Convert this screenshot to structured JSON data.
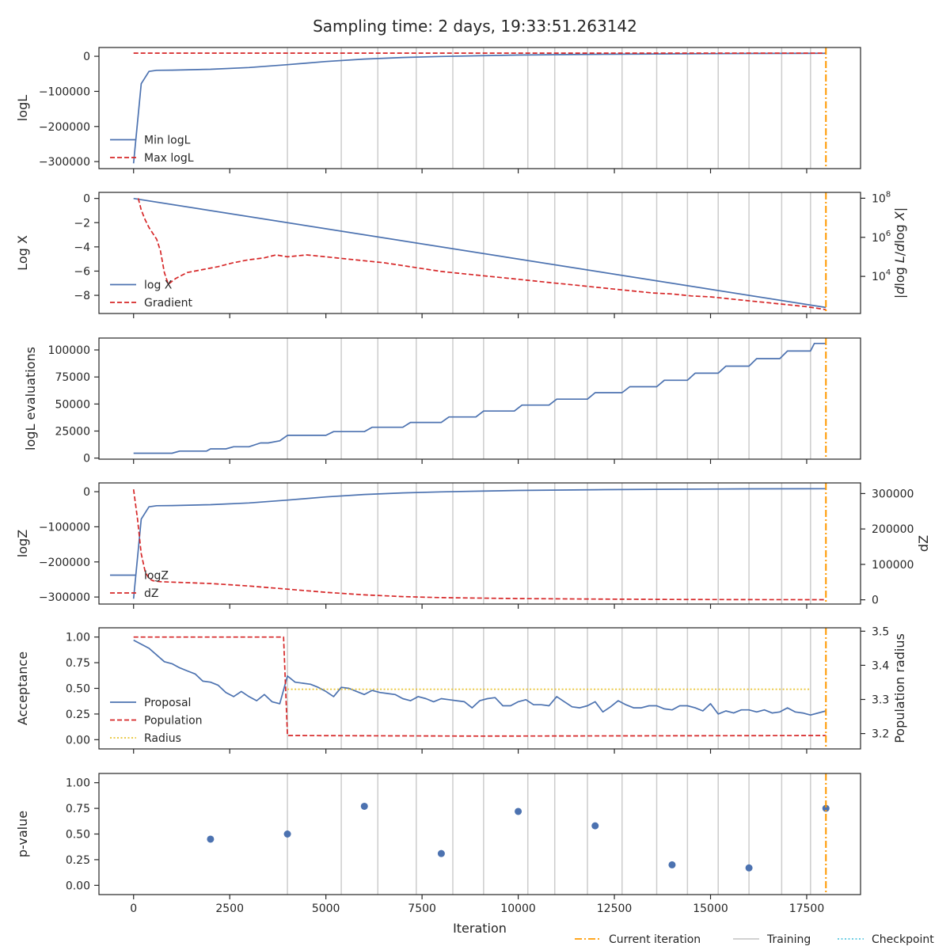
{
  "chart_data": {
    "title": "Sampling time: 2 days, 19:33:51.263142",
    "xlabel": "Iteration",
    "xlim": [
      -900,
      18900
    ],
    "xticks": [
      0,
      2500,
      5000,
      7500,
      10000,
      12500,
      15000,
      17500
    ],
    "xtick_labels": [
      "0",
      "2500",
      "5000",
      "7500",
      "10000",
      "12500",
      "15000",
      "17500"
    ],
    "training_iterations": [
      4000,
      5400,
      6350,
      7350,
      8300,
      9100,
      10250,
      10950,
      11800,
      12700,
      13600,
      14400,
      15200,
      16000,
      16850,
      17600
    ],
    "current_iteration": 18000,
    "figure_legend": [
      {
        "label": "Current iteration",
        "color": "#ff9900",
        "style": "dashdot"
      },
      {
        "label": "Training",
        "color": "#cccccc",
        "style": "solid"
      },
      {
        "label": "Checkpoint",
        "color": "#5bc8e0",
        "style": "dotted"
      }
    ],
    "panels": [
      {
        "type": "line",
        "ylabel": "logL",
        "ylim": [
          -320000,
          25000
        ],
        "yticks": [
          0,
          -100000,
          -200000,
          -300000
        ],
        "ytick_labels": [
          "0",
          "−100000",
          "−200000",
          "−300000"
        ],
        "legend_position": "lower-left",
        "series": [
          {
            "name": "Min logL",
            "color": "#4c72b0",
            "style": "solid",
            "x": [
              0,
              200,
              400,
              600,
              1000,
              2000,
              3000,
              4000,
              5000,
              6000,
              7000,
              8000,
              9000,
              10000,
              12000,
              14000,
              16000,
              18000
            ],
            "y": [
              -305000,
              -78000,
              -43000,
              -40000,
              -39500,
              -37000,
              -32000,
              -24000,
              -15000,
              -8000,
              -3500,
              -500,
              1500,
              3500,
              5500,
              7000,
              8000,
              8500
            ]
          },
          {
            "name": "Max logL",
            "color": "#d62728",
            "style": "dashed",
            "x": [
              0,
              18000
            ],
            "y": [
              9000,
              9000
            ]
          }
        ]
      },
      {
        "type": "line",
        "ylabel": "Log X",
        "ylim": [
          -9.5,
          0.5
        ],
        "yticks": [
          0,
          -2,
          -4,
          -6,
          -8
        ],
        "ytick_labels": [
          "0",
          "−2",
          "−4",
          "−6",
          "−8"
        ],
        "y2label": "|d log L/d log X|",
        "y2scale": "log",
        "y2lim_log10": [
          2.1,
          8.3
        ],
        "y2ticks_log10": [
          4,
          6,
          8
        ],
        "y2tick_labels": [
          "10^4",
          "10^6",
          "10^8"
        ],
        "legend_position": "lower-left",
        "series": [
          {
            "name": "log X",
            "color": "#4c72b0",
            "style": "solid",
            "axis": "left",
            "x": [
              0,
              18000
            ],
            "y": [
              0,
              -9.0
            ]
          },
          {
            "name": "Gradient",
            "color": "#d62728",
            "style": "dashed",
            "axis": "right",
            "x": [
              120,
              200,
              300,
              400,
              500,
              600,
              700,
              800,
              900,
              1100,
              1400,
              1800,
              2200,
              2600,
              3000,
              3400,
              3700,
              4000,
              4500,
              5000,
              5500,
              6000,
              6500,
              7000,
              7500,
              8000,
              8500,
              9000,
              9500,
              10000,
              10500,
              11000,
              11500,
              12000,
              12500,
              13000,
              13500,
              14000,
              14500,
              15000,
              15500,
              16000,
              16500,
              17000,
              17500,
              18000
            ],
            "y": [
              8.0,
              7.4,
              6.9,
              6.5,
              6.2,
              5.9,
              5.3,
              4.2,
              3.6,
              3.9,
              4.2,
              4.35,
              4.5,
              4.7,
              4.85,
              4.95,
              5.1,
              5.0,
              5.1,
              5.0,
              4.9,
              4.8,
              4.7,
              4.55,
              4.4,
              4.25,
              4.15,
              4.05,
              3.95,
              3.85,
              3.75,
              3.65,
              3.55,
              3.45,
              3.35,
              3.25,
              3.15,
              3.1,
              3.0,
              2.95,
              2.85,
              2.75,
              2.65,
              2.55,
              2.45,
              2.3
            ]
          }
        ]
      },
      {
        "type": "line",
        "ylabel": "logL evaluations",
        "ylim": [
          -1000,
          111000
        ],
        "yticks": [
          0,
          25000,
          50000,
          75000,
          100000
        ],
        "ytick_labels": [
          "0",
          "25000",
          "50000",
          "75000",
          "100000"
        ],
        "series": [
          {
            "name": "",
            "color": "#4c72b0",
            "style": "solid",
            "x": [
              0,
              1000,
              1200,
              1900,
              2000,
              2400,
              2600,
              3000,
              3300,
              3500,
              3800,
              4000,
              5000,
              5200,
              6000,
              6200,
              7000,
              7200,
              8000,
              8200,
              8900,
              9100,
              9900,
              10100,
              10800,
              11000,
              11800,
              12000,
              12700,
              12900,
              13600,
              13800,
              14400,
              14600,
              15200,
              15400,
              16000,
              16200,
              16800,
              17000,
              17600,
              17700,
              18000
            ],
            "y": [
              4500,
              4500,
              6500,
              6500,
              8500,
              8500,
              10500,
              10500,
              14000,
              14000,
              16000,
              21000,
              21000,
              24500,
              24500,
              28500,
              28500,
              33000,
              33000,
              38000,
              38000,
              43500,
              43500,
              49000,
              49000,
              54500,
              54500,
              60500,
              60500,
              66000,
              66000,
              72000,
              72000,
              78500,
              78500,
              85000,
              85000,
              92000,
              92000,
              99000,
              99000,
              106000,
              106000
            ]
          }
        ]
      },
      {
        "type": "line",
        "ylabel": "logZ",
        "ylim": [
          -320000,
          25000
        ],
        "yticks": [
          0,
          -100000,
          -200000,
          -300000
        ],
        "ytick_labels": [
          "0",
          "−100000",
          "−200000",
          "−300000"
        ],
        "y2label": "dZ",
        "y2lim": [
          -12000,
          330000
        ],
        "y2ticks": [
          0,
          100000,
          200000,
          300000
        ],
        "y2tick_labels": [
          "0",
          "100000",
          "200000",
          "300000"
        ],
        "legend_position": "lower-left",
        "series": [
          {
            "name": "logZ",
            "color": "#4c72b0",
            "style": "solid",
            "axis": "left",
            "x": [
              0,
              200,
              400,
              600,
              1000,
              2000,
              3000,
              4000,
              5000,
              6000,
              7000,
              8000,
              9000,
              10000,
              12000,
              14000,
              16000,
              18000
            ],
            "y": [
              -305000,
              -78000,
              -43000,
              -40000,
              -39500,
              -37000,
              -32000,
              -24000,
              -15000,
              -8000,
              -3500,
              -500,
              1500,
              3500,
              5500,
              7000,
              8000,
              8500
            ]
          },
          {
            "name": "dZ",
            "color": "#d62728",
            "style": "dashed",
            "axis": "right",
            "x": [
              0,
              100,
              200,
              300,
              400,
              500,
              700,
              1000,
              2000,
              3000,
              4000,
              5000,
              6000,
              7000,
              8000,
              10000,
              12000,
              14000,
              16000,
              18000
            ],
            "y": [
              312000,
              230000,
              130000,
              80000,
              60000,
              54000,
              51000,
              50000,
              46000,
              39000,
              30000,
              21000,
              14000,
              9000,
              6000,
              3500,
              2000,
              1000,
              500,
              200
            ]
          }
        ]
      },
      {
        "type": "line",
        "ylabel": "Acceptance",
        "ylim": [
          -0.09,
          1.09
        ],
        "yticks": [
          0,
          0.25,
          0.5,
          0.75,
          1.0
        ],
        "ytick_labels": [
          "0.00",
          "0.25",
          "0.50",
          "0.75",
          "1.00"
        ],
        "y2label": "Population radius",
        "y2lim": [
          3.155,
          3.51
        ],
        "y2ticks": [
          3.2,
          3.3,
          3.4,
          3.5
        ],
        "y2tick_labels": [
          "3.2",
          "3.3",
          "3.4",
          "3.5"
        ],
        "legend_position": "lower-left",
        "series": [
          {
            "name": "Proposal",
            "color": "#4c72b0",
            "style": "solid",
            "axis": "left",
            "x": [
              0,
              400,
              800,
              1000,
              1200,
              1400,
              1600,
              1800,
              2000,
              2200,
              2400,
              2600,
              2800,
              3000,
              3200,
              3400,
              3600,
              3800,
              4000,
              4200,
              4400,
              4600,
              4800,
              5000,
              5200,
              5400,
              5600,
              5800,
              6000,
              6200,
              6400,
              6600,
              6800,
              7000,
              7200,
              7400,
              7600,
              7800,
              8000,
              8200,
              8400,
              8600,
              8800,
              9000,
              9200,
              9400,
              9600,
              9800,
              10000,
              10200,
              10400,
              10600,
              10800,
              11000,
              11200,
              11400,
              11600,
              11800,
              12000,
              12200,
              12400,
              12600,
              12800,
              13000,
              13200,
              13400,
              13600,
              13800,
              14000,
              14200,
              14400,
              14600,
              14800,
              15000,
              15200,
              15400,
              15600,
              15800,
              16000,
              16200,
              16400,
              16600,
              16800,
              17000,
              17200,
              17400,
              17600,
              18000
            ],
            "y": [
              0.97,
              0.89,
              0.76,
              0.74,
              0.7,
              0.67,
              0.64,
              0.57,
              0.56,
              0.53,
              0.46,
              0.42,
              0.47,
              0.42,
              0.38,
              0.44,
              0.37,
              0.35,
              0.62,
              0.56,
              0.55,
              0.54,
              0.51,
              0.47,
              0.42,
              0.51,
              0.5,
              0.47,
              0.44,
              0.48,
              0.46,
              0.45,
              0.44,
              0.4,
              0.38,
              0.42,
              0.4,
              0.37,
              0.4,
              0.39,
              0.38,
              0.37,
              0.31,
              0.38,
              0.4,
              0.41,
              0.33,
              0.33,
              0.37,
              0.39,
              0.34,
              0.34,
              0.33,
              0.42,
              0.37,
              0.32,
              0.31,
              0.33,
              0.37,
              0.27,
              0.32,
              0.38,
              0.34,
              0.31,
              0.31,
              0.33,
              0.33,
              0.3,
              0.29,
              0.33,
              0.33,
              0.31,
              0.28,
              0.35,
              0.25,
              0.28,
              0.26,
              0.29,
              0.29,
              0.27,
              0.29,
              0.26,
              0.27,
              0.31,
              0.27,
              0.26,
              0.24,
              0.28
            ]
          },
          {
            "name": "Population",
            "color": "#d62728",
            "style": "dashed",
            "axis": "left",
            "x": [
              0,
              3900,
              4000,
              9000,
              18000
            ],
            "y": [
              1.0,
              1.0,
              0.04,
              0.035,
              0.04
            ]
          },
          {
            "name": "Radius",
            "color": "#e8c330",
            "style": "dotted",
            "axis": "right",
            "x": [
              4000,
              17600
            ],
            "y": [
              3.33,
              3.33
            ]
          }
        ]
      },
      {
        "type": "scatter",
        "ylabel": "p-value",
        "ylim": [
          -0.09,
          1.09
        ],
        "yticks": [
          0,
          0.25,
          0.5,
          0.75,
          1.0
        ],
        "ytick_labels": [
          "0.00",
          "0.25",
          "0.50",
          "0.75",
          "1.00"
        ],
        "series": [
          {
            "name": "",
            "color": "#4c72b0",
            "x": [
              2000,
              4000,
              6000,
              8000,
              10000,
              12000,
              14000,
              16000,
              18000
            ],
            "y": [
              0.45,
              0.5,
              0.77,
              0.31,
              0.72,
              0.58,
              0.2,
              0.17,
              0.75
            ]
          }
        ]
      }
    ]
  }
}
